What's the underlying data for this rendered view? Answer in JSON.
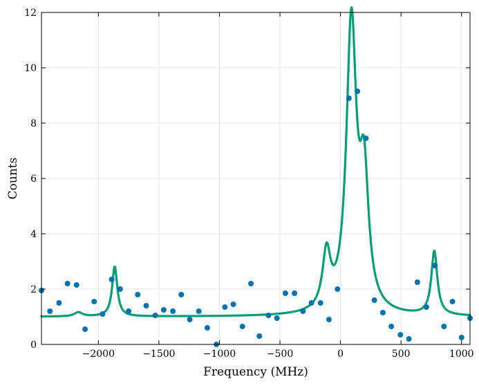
{
  "chart_data": {
    "type": "scatter",
    "title": "",
    "xlabel": "Frequency (MHz)",
    "ylabel": "Counts",
    "xlim": [
      -2470,
      1070
    ],
    "ylim": [
      0,
      12
    ],
    "grid": true,
    "legend": "none",
    "x_ticks": [
      -2000,
      -1500,
      -1000,
      -500,
      0,
      500,
      1000
    ],
    "x_tick_labels": [
      "−2000",
      "−1500",
      "−1000",
      "−500",
      "0",
      "500",
      "1000"
    ],
    "y_ticks": [
      0,
      2,
      4,
      6,
      8,
      10,
      12
    ],
    "y_tick_labels": [
      "0",
      "2",
      "4",
      "6",
      "8",
      "10",
      "12"
    ],
    "colors": {
      "points": "#0072b2",
      "fit": "#009e73"
    },
    "series": [
      {
        "kind": "points",
        "x": [
          -2470,
          -2400,
          -2325,
          -2255,
          -2180,
          -2110,
          -2035,
          -1965,
          -1890,
          -1820,
          -1750,
          -1675,
          -1605,
          -1530,
          -1460,
          -1385,
          -1315,
          -1245,
          -1170,
          -1100,
          -1025,
          -955,
          -885,
          -810,
          -740,
          -670,
          -595,
          -525,
          -455,
          -380,
          -310,
          -240,
          -165,
          -95,
          -25,
          70,
          140,
          210,
          280,
          350,
          420,
          495,
          565,
          635,
          710,
          780,
          855,
          925,
          1000,
          1070
        ],
        "y": [
          1.95,
          1.2,
          1.5,
          2.2,
          2.15,
          0.55,
          1.55,
          1.1,
          2.35,
          2.0,
          1.2,
          1.8,
          1.4,
          1.05,
          1.25,
          1.2,
          1.8,
          0.9,
          1.2,
          0.6,
          0.0,
          1.35,
          1.45,
          0.65,
          2.2,
          0.3,
          1.05,
          0.95,
          1.85,
          1.85,
          1.2,
          1.5,
          1.5,
          0.9,
          2.0,
          8.9,
          9.15,
          7.45,
          1.6,
          1.15,
          0.65,
          0.35,
          0.2,
          2.25,
          1.35,
          2.85,
          0.65,
          1.55,
          0.25,
          0.95
        ]
      },
      {
        "kind": "fit",
        "baseline": 1.0,
        "peaks": [
          {
            "center": -2165,
            "amplitude": 0.15,
            "hwhm": 40
          },
          {
            "center": -1865,
            "amplitude": 1.8,
            "hwhm": 26
          },
          {
            "center": -115,
            "amplitude": 2.0,
            "hwhm": 40
          },
          {
            "center": 90,
            "amplitude": 10.4,
            "hwhm": 50
          },
          {
            "center": 195,
            "amplitude": 4.5,
            "hwhm": 45
          },
          {
            "center": 775,
            "amplitude": 2.3,
            "hwhm": 30
          }
        ]
      }
    ]
  }
}
